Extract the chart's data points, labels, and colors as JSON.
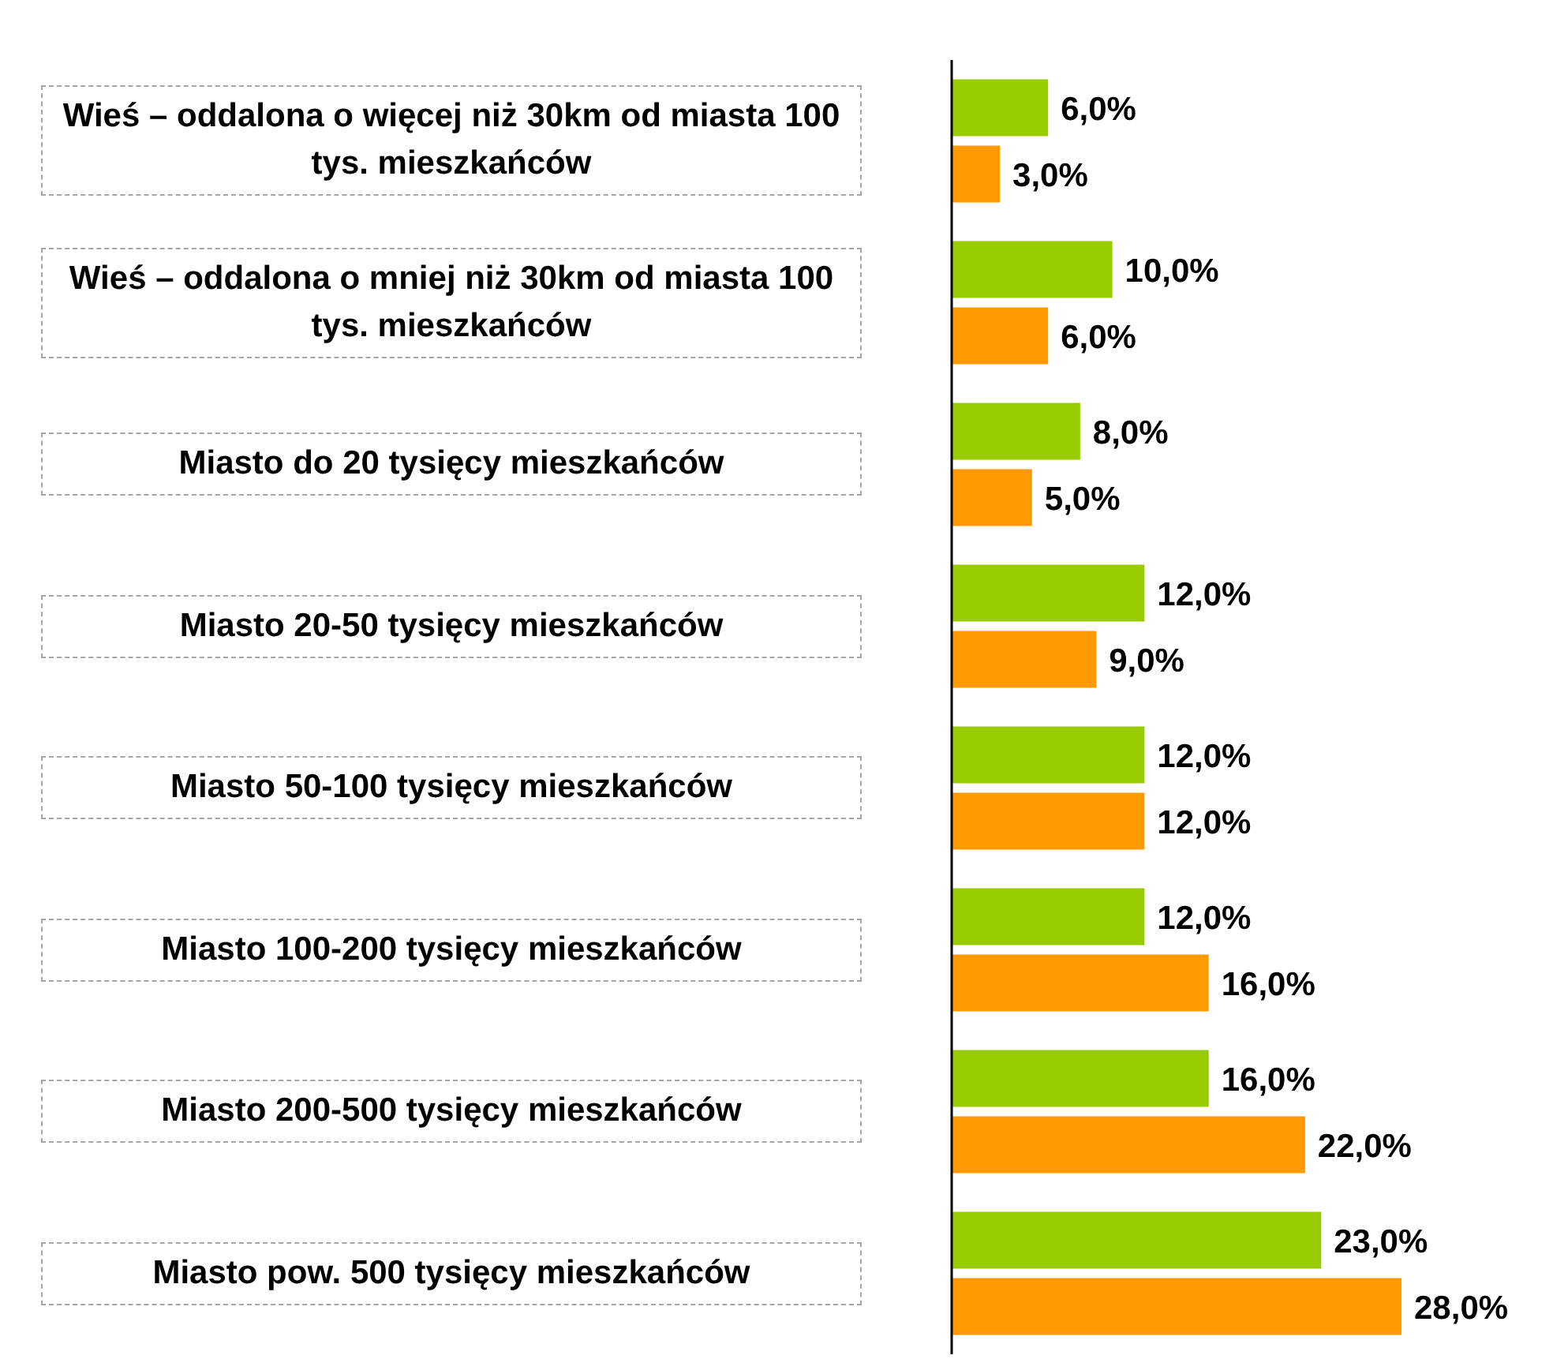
{
  "chart_data": {
    "type": "bar",
    "orientation": "horizontal",
    "categories": [
      "Wieś – oddalona o więcej niż 30km od miasta 100 tys. mieszkańców",
      "Wieś – oddalona o mniej niż 30km od miasta 100 tys. mieszkańców",
      "Miasto do 20 tysięcy mieszkańców",
      "Miasto 20-50 tysięcy mieszkańców",
      "Miasto 50-100 tysięcy mieszkańców",
      "Miasto 100-200 tysięcy mieszkańców",
      "Miasto 200-500 tysięcy mieszkańców",
      "Miasto pow. 500 tysięcy mieszkańców"
    ],
    "series": [
      {
        "color": "#99cc00",
        "values": [
          6,
          10,
          8,
          12,
          12,
          12,
          16,
          23
        ],
        "value_labels": [
          "6,0%",
          "10,0%",
          "8,0%",
          "12,0%",
          "12,0%",
          "12,0%",
          "16,0%",
          "23,0%"
        ]
      },
      {
        "color": "#ff9900",
        "values": [
          3,
          6,
          5,
          9,
          12,
          16,
          22,
          28
        ],
        "value_labels": [
          "3,0%",
          "6,0%",
          "5,0%",
          "9,0%",
          "12,0%",
          "16,0%",
          "22,0%",
          "28,0%"
        ]
      }
    ],
    "grid": false,
    "legend": false
  }
}
